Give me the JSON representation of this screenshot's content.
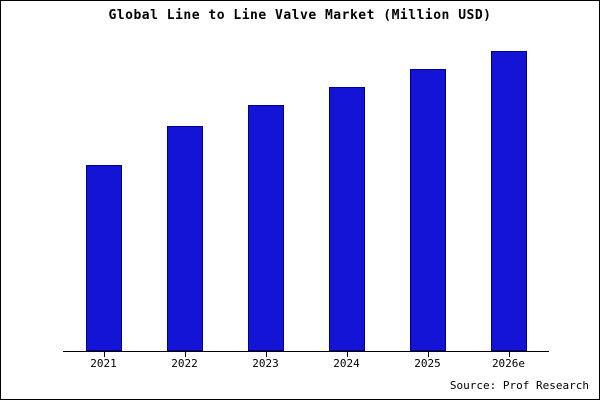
{
  "title": "Global Line to Line Valve Market (Million USD)",
  "source": "Source: Prof Research",
  "colors": {
    "bar_fill": "#1414d6",
    "bar_border": "#00008b",
    "axis": "#000000",
    "background": "#ffffff"
  },
  "chart_data": {
    "type": "bar",
    "categories": [
      "2021",
      "2022",
      "2023",
      "2024",
      "2025",
      "2026e"
    ],
    "values": [
      62,
      75,
      82,
      88,
      94,
      100
    ],
    "title": "Global Line to Line Valve Market (Million USD)",
    "xlabel": "",
    "ylabel": "",
    "ylim": [
      0,
      105
    ],
    "grid": false,
    "legend": null,
    "y_axis_labeled": false,
    "annotations": [
      "Source: Prof Research"
    ]
  }
}
